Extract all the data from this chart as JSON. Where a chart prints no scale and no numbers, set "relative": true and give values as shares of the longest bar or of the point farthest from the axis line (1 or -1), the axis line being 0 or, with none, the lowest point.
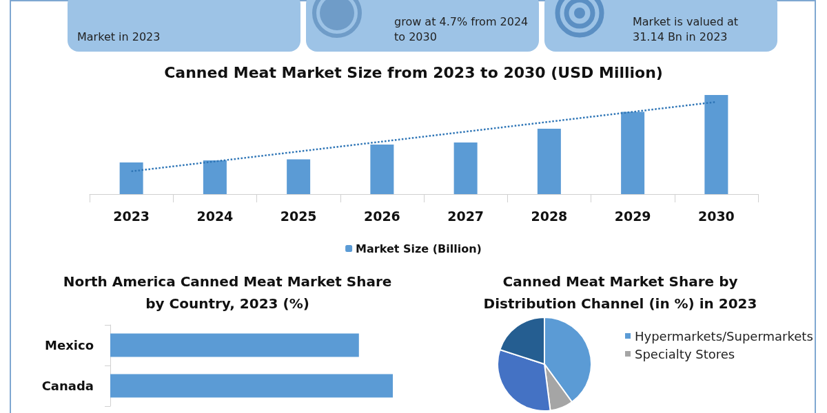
{
  "chart_data": [
    {
      "type": "other",
      "annotations": [
        "Market in 2023",
        "grow at 4.7% from 2024 to 2030",
        "Market is valued at 31.14 Bn in 2023"
      ]
    },
    {
      "type": "bar",
      "title": "Canned Meat Market Size from 2023 to 2030 (USD Million)",
      "categories": [
        "2023",
        "2024",
        "2025",
        "2026",
        "2027",
        "2028",
        "2029",
        "2030"
      ],
      "relative": true,
      "legend": "bottom",
      "series": [
        {
          "name": "Market Size (Billion)",
          "color": "#5b9bd5",
          "values": [
            0.32,
            0.34,
            0.35,
            0.5,
            0.52,
            0.66,
            0.83,
            1
          ]
        },
        {
          "type": "line",
          "values": [
            0.23,
            0.33,
            0.43,
            0.53,
            0.63,
            0.73,
            0.83,
            0.93
          ],
          "color": "#2e75b6",
          "line_style": "dotted",
          "marker": "none"
        }
      ]
    },
    {
      "type": "bar",
      "orientation": "horizontal",
      "title": "North America Canned Meat Market Share\nby Country, 2023 (%)",
      "categories": [
        "Mexico",
        "Canada"
      ],
      "values": [
        0.88,
        1
      ],
      "color": "#5b9bd5",
      "relative": true
    },
    {
      "type": "pie",
      "title": "Canned Meat Market Share by\nDistribution Channel (in %) in 2023",
      "categories": [
        "Hypermarkets/Supermarkets",
        "Specialty Stores",
        null,
        null
      ],
      "values": [
        40,
        8,
        32,
        20
      ],
      "colors": [
        "#5b9bd5",
        "#a5a5a5",
        "#4472c4",
        "#255e91"
      ],
      "legend": "right"
    }
  ]
}
